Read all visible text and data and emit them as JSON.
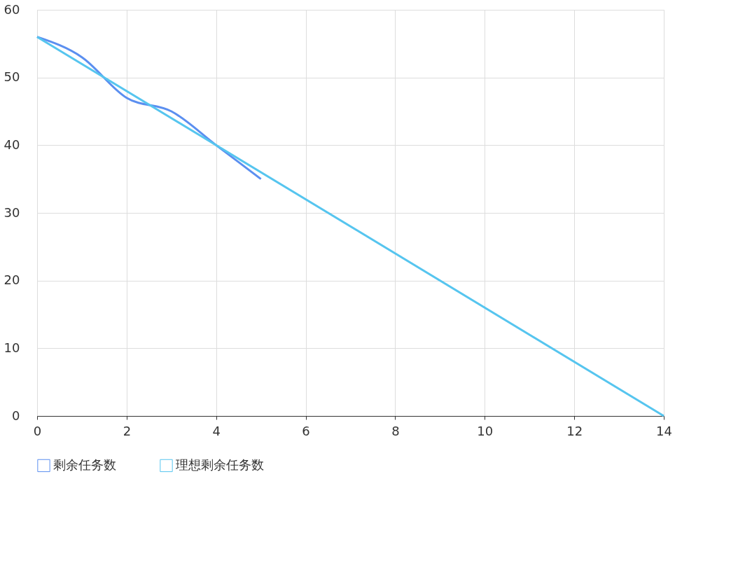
{
  "chart_data": {
    "type": "line",
    "x": [
      0,
      1,
      2,
      3,
      4,
      5
    ],
    "series": [
      {
        "name": "剩余任务数",
        "color": "#5b8ff0",
        "values": [
          56,
          53,
          47,
          45,
          40,
          35
        ]
      },
      {
        "name": "理想剩余任务数",
        "color": "#56c5ef",
        "x": [
          0,
          14
        ],
        "values": [
          56,
          0
        ]
      }
    ],
    "xlim": [
      0,
      14
    ],
    "xticks": [
      0,
      2,
      4,
      6,
      8,
      10,
      12,
      14
    ],
    "ylim": [
      0,
      60
    ],
    "yticks": [
      0,
      10,
      20,
      30,
      40,
      50,
      60
    ],
    "grid": true,
    "legend": "bottom",
    "marker": "none",
    "line_style": "solid"
  }
}
